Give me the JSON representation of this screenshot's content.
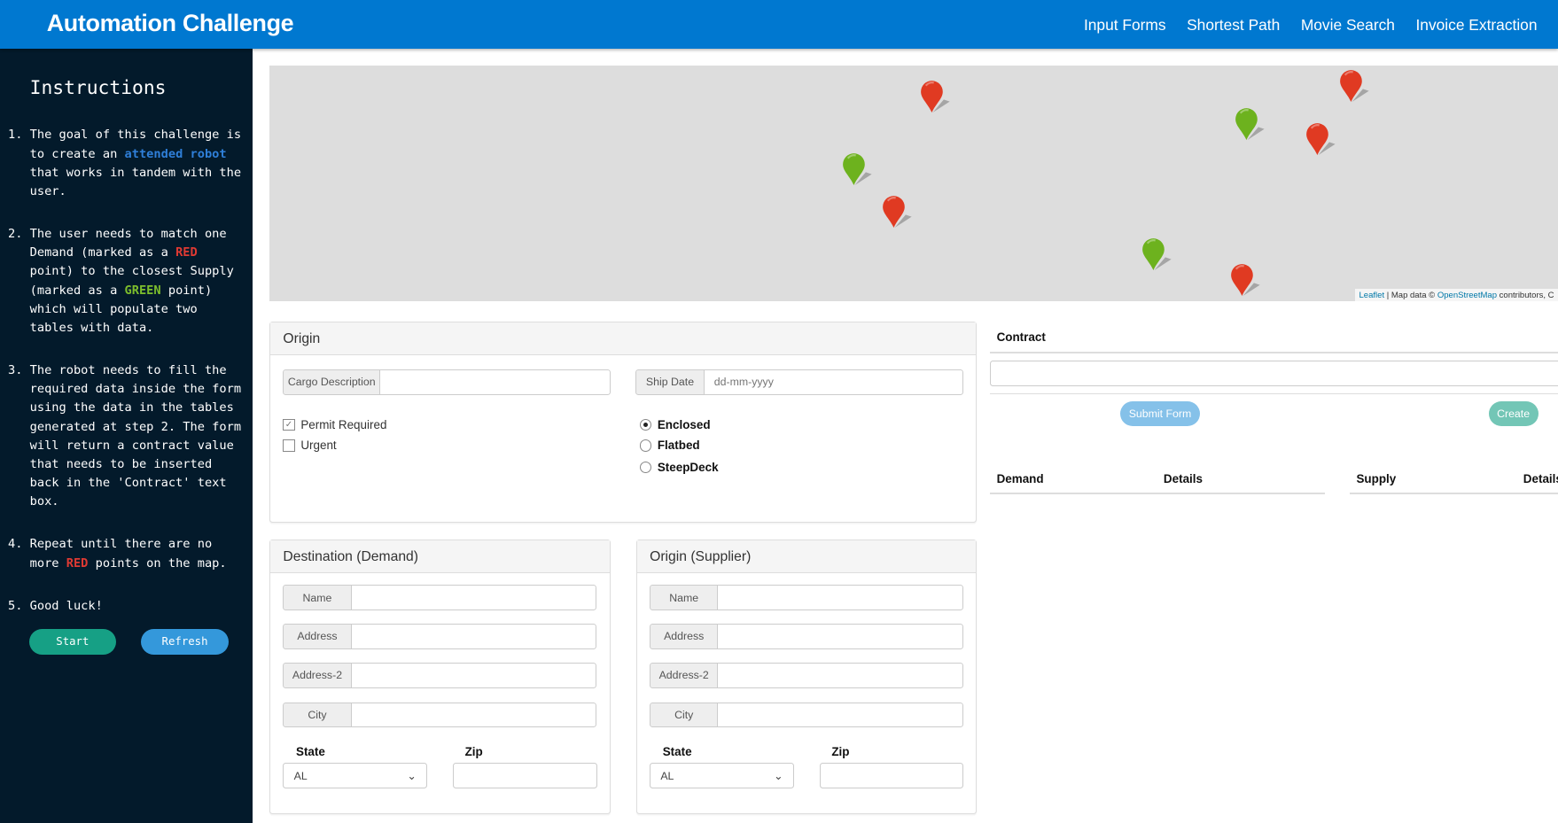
{
  "header": {
    "title": "Automation Challenge",
    "nav": [
      "Input Forms",
      "Shortest Path",
      "Movie Search",
      "Invoice Extraction"
    ]
  },
  "sidebar": {
    "title": "Instructions",
    "steps": [
      {
        "n": "1.",
        "a": "The goal of this challenge is to create an ",
        "hl": "attended robot",
        "b": " that works in tandem with the user."
      },
      {
        "n": "2.",
        "a": "The user needs to match one Demand (marked as a ",
        "red": "RED",
        "b": " point) to the closest Supply (marked as a ",
        "green": "GREEN",
        "c": " point) which will populate two tables with data."
      },
      {
        "n": "3.",
        "a": "The robot needs to fill the required data inside the form using the data in the tables generated at step 2. The form will return a contract value that needs to be inserted back in the 'Contract' text box."
      },
      {
        "n": "4.",
        "a": "Repeat until there are no more ",
        "red": "RED",
        "b": " points on the map."
      },
      {
        "n": "5.",
        "a": "Good luck!"
      }
    ],
    "start": "Start",
    "refresh": "Refresh"
  },
  "colors": {
    "header": "#0078d0",
    "sidebar": "#031a2b",
    "demand_pin": "#e03a22",
    "supply_pin": "#6db21e",
    "start": "#16a085",
    "refresh": "#3498db",
    "submit": "#85c1e9",
    "create": "#73c6b6"
  },
  "map": {
    "attribution": {
      "leaflet": "Leaflet",
      "sep": " | Map data © ",
      "osm": "OpenStreetMap",
      "rest": " contributors, C"
    },
    "markers": [
      "demand",
      "demand",
      "demand",
      "demand",
      "demand",
      "supply",
      "supply",
      "supply"
    ]
  },
  "origin": {
    "title": "Origin",
    "cargo_label": "Cargo Description",
    "cargo_value": "",
    "ship_label": "Ship Date",
    "ship_placeholder": "dd-mm-yyyy",
    "permit": "Permit Required",
    "permit_checked": true,
    "urgent": "Urgent",
    "urgent_checked": false,
    "trailers": [
      "Enclosed",
      "Flatbed",
      "SteepDeck"
    ],
    "trailer_selected": "Enclosed"
  },
  "destination": {
    "title": "Destination (Demand)",
    "name": "Name",
    "address": "Address",
    "address2": "Address-2",
    "city": "City",
    "state_label": "State",
    "state": "AL",
    "zip_label": "Zip"
  },
  "supplier": {
    "title": "Origin (Supplier)",
    "name": "Name",
    "address": "Address",
    "address2": "Address-2",
    "city": "City",
    "state_label": "State",
    "state": "AL",
    "zip_label": "Zip"
  },
  "contract": {
    "label": "Contract",
    "value": "",
    "submit": "Submit Form",
    "create": "Create"
  },
  "tables": {
    "demand": [
      "Demand",
      "Details"
    ],
    "supply": [
      "Supply",
      "Details"
    ]
  }
}
